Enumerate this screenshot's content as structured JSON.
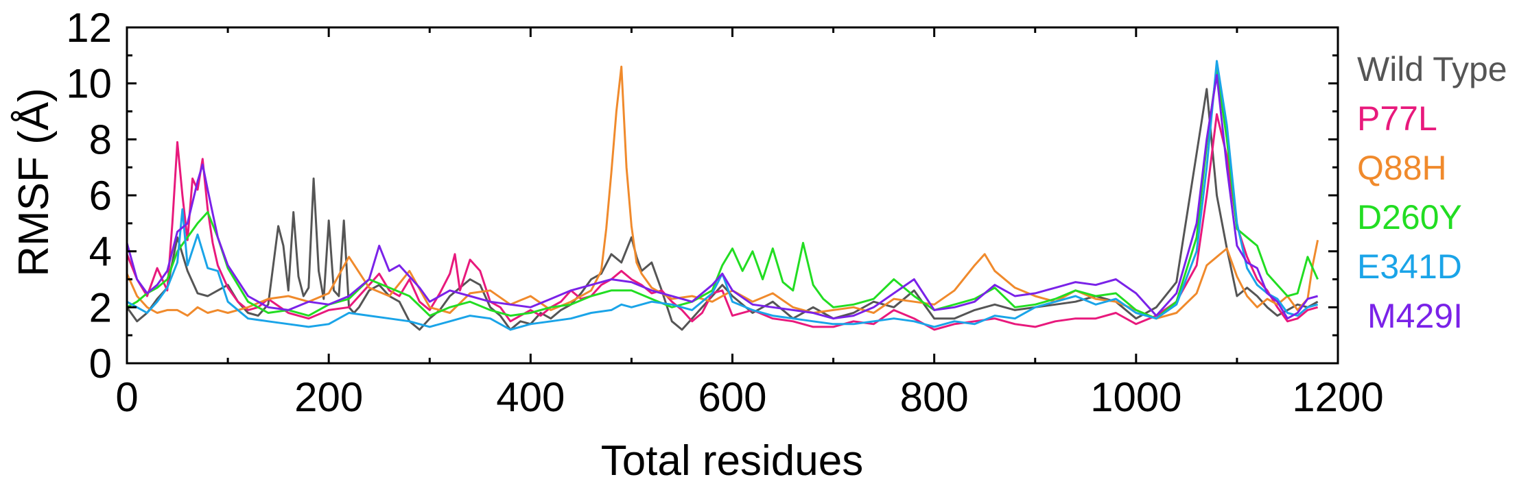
{
  "chart_data": {
    "type": "line",
    "title": "",
    "xlabel": "Total residues",
    "ylabel": "RMSF (Å)",
    "xlim": [
      0,
      1200
    ],
    "ylim": [
      0,
      12
    ],
    "x_ticks": [
      0,
      200,
      400,
      600,
      800,
      1000,
      1200
    ],
    "y_ticks": [
      0,
      2,
      4,
      6,
      8,
      10,
      12
    ],
    "grid": false,
    "legend_position": "right",
    "series": [
      {
        "name": "Wild Type",
        "color": "#555555",
        "x": [
          0,
          10,
          20,
          30,
          40,
          50,
          60,
          70,
          80,
          90,
          100,
          110,
          120,
          130,
          140,
          150,
          155,
          160,
          165,
          170,
          175,
          180,
          185,
          190,
          195,
          200,
          205,
          210,
          215,
          220,
          225,
          230,
          240,
          250,
          260,
          270,
          280,
          290,
          300,
          310,
          320,
          330,
          340,
          350,
          360,
          370,
          380,
          390,
          400,
          410,
          420,
          430,
          440,
          450,
          460,
          470,
          480,
          490,
          500,
          505,
          510,
          520,
          530,
          540,
          550,
          560,
          570,
          580,
          590,
          600,
          620,
          640,
          660,
          680,
          700,
          720,
          740,
          760,
          780,
          800,
          820,
          840,
          860,
          880,
          900,
          920,
          940,
          960,
          980,
          1000,
          1020,
          1040,
          1060,
          1070,
          1080,
          1090,
          1100,
          1110,
          1120,
          1130,
          1140,
          1150,
          1160,
          1170,
          1180
        ],
        "y": [
          2.0,
          1.5,
          1.8,
          2.3,
          2.7,
          4.5,
          3.3,
          2.5,
          2.4,
          2.6,
          2.8,
          2.2,
          1.8,
          1.7,
          2.1,
          4.9,
          4.2,
          2.6,
          5.4,
          3.1,
          2.4,
          2.7,
          6.6,
          3.3,
          2.3,
          5.1,
          2.6,
          2.4,
          5.1,
          2.0,
          1.8,
          2.0,
          2.6,
          2.8,
          2.4,
          2.2,
          1.5,
          1.2,
          1.6,
          1.9,
          2.4,
          2.7,
          3.0,
          2.8,
          2.0,
          1.7,
          1.2,
          1.5,
          1.4,
          1.8,
          1.6,
          1.9,
          2.1,
          2.5,
          3.0,
          3.2,
          3.9,
          3.6,
          4.5,
          3.8,
          3.3,
          3.6,
          2.6,
          1.5,
          1.2,
          1.6,
          2.0,
          2.4,
          2.8,
          2.4,
          1.8,
          2.2,
          1.6,
          2.0,
          1.6,
          1.8,
          2.2,
          2.0,
          2.6,
          1.6,
          1.6,
          1.9,
          2.1,
          1.9,
          2.0,
          2.1,
          2.2,
          2.4,
          2.2,
          1.6,
          2.0,
          2.9,
          7.5,
          9.8,
          6.0,
          4.1,
          2.4,
          2.7,
          2.4,
          2.0,
          1.7,
          1.9,
          2.1,
          2.0,
          2.2
        ]
      },
      {
        "name": "P77L",
        "color": "#e8197c",
        "x": [
          0,
          10,
          20,
          30,
          40,
          45,
          50,
          55,
          60,
          65,
          70,
          75,
          80,
          85,
          90,
          100,
          110,
          120,
          130,
          140,
          160,
          180,
          200,
          220,
          240,
          250,
          260,
          270,
          280,
          290,
          300,
          310,
          320,
          325,
          330,
          340,
          350,
          360,
          370,
          380,
          390,
          400,
          410,
          420,
          430,
          440,
          450,
          460,
          470,
          480,
          490,
          500,
          510,
          520,
          530,
          540,
          550,
          560,
          570,
          580,
          590,
          600,
          620,
          640,
          660,
          680,
          700,
          720,
          740,
          760,
          780,
          800,
          820,
          840,
          860,
          880,
          900,
          920,
          940,
          960,
          980,
          1000,
          1020,
          1040,
          1060,
          1070,
          1080,
          1090,
          1100,
          1110,
          1120,
          1130,
          1140,
          1150,
          1160,
          1170,
          1180
        ],
        "y": [
          3.9,
          3.0,
          2.4,
          3.4,
          2.6,
          5.0,
          7.9,
          6.0,
          4.4,
          6.6,
          6.2,
          7.3,
          5.5,
          4.3,
          3.5,
          2.7,
          2.2,
          1.9,
          2.0,
          2.3,
          1.8,
          1.6,
          1.9,
          2.0,
          2.8,
          3.2,
          2.6,
          2.4,
          3.0,
          2.2,
          1.9,
          2.5,
          3.2,
          3.9,
          2.6,
          3.7,
          3.3,
          2.2,
          2.0,
          1.5,
          1.7,
          1.9,
          1.7,
          2.0,
          2.2,
          2.6,
          2.3,
          2.4,
          2.8,
          3.0,
          3.3,
          3.0,
          2.8,
          2.5,
          2.6,
          2.2,
          1.9,
          1.5,
          1.8,
          2.5,
          2.6,
          1.7,
          1.9,
          1.6,
          1.5,
          1.3,
          1.3,
          1.5,
          1.4,
          1.9,
          1.6,
          1.2,
          1.4,
          1.5,
          1.6,
          1.4,
          1.3,
          1.5,
          1.6,
          1.6,
          1.8,
          1.4,
          1.7,
          2.2,
          3.5,
          6.0,
          8.9,
          7.4,
          4.9,
          3.8,
          3.0,
          2.6,
          2.0,
          1.5,
          1.6,
          1.9,
          2.0
        ]
      },
      {
        "name": "Q88H",
        "color": "#f08a2c",
        "x": [
          0,
          10,
          20,
          30,
          40,
          50,
          60,
          70,
          80,
          90,
          100,
          120,
          140,
          160,
          180,
          200,
          220,
          240,
          260,
          280,
          300,
          320,
          340,
          360,
          380,
          400,
          420,
          440,
          460,
          470,
          475,
          480,
          485,
          490,
          495,
          500,
          505,
          510,
          520,
          540,
          560,
          580,
          600,
          620,
          640,
          660,
          680,
          700,
          720,
          740,
          760,
          780,
          800,
          820,
          840,
          850,
          860,
          880,
          900,
          920,
          940,
          960,
          980,
          1000,
          1020,
          1040,
          1060,
          1070,
          1080,
          1090,
          1100,
          1110,
          1120,
          1130,
          1140,
          1150,
          1160,
          1170,
          1175,
          1180
        ],
        "y": [
          3.2,
          2.4,
          2.0,
          1.8,
          1.9,
          1.9,
          1.7,
          2.0,
          1.8,
          1.9,
          1.8,
          2.0,
          2.3,
          2.4,
          2.2,
          2.5,
          3.8,
          2.7,
          2.4,
          3.3,
          2.0,
          1.8,
          2.5,
          2.6,
          2.1,
          2.4,
          1.9,
          2.2,
          2.6,
          3.3,
          4.8,
          6.8,
          9.0,
          10.6,
          7.0,
          4.9,
          3.6,
          3.2,
          2.7,
          2.3,
          2.4,
          2.2,
          2.6,
          2.2,
          2.5,
          2.0,
          1.8,
          1.9,
          2.0,
          1.8,
          2.3,
          2.2,
          2.1,
          2.6,
          3.5,
          3.9,
          3.3,
          2.7,
          2.4,
          2.2,
          2.6,
          2.3,
          2.2,
          1.9,
          1.6,
          1.8,
          2.5,
          3.5,
          3.8,
          4.1,
          3.1,
          2.4,
          2.0,
          2.3,
          2.1,
          2.4,
          1.9,
          2.3,
          3.5,
          4.4
        ]
      },
      {
        "name": "D260Y",
        "color": "#22dd22",
        "x": [
          0,
          10,
          20,
          30,
          40,
          50,
          60,
          70,
          80,
          90,
          100,
          120,
          140,
          160,
          180,
          200,
          220,
          240,
          260,
          280,
          300,
          320,
          340,
          360,
          380,
          400,
          420,
          440,
          460,
          480,
          500,
          520,
          540,
          560,
          580,
          590,
          600,
          610,
          620,
          630,
          640,
          650,
          660,
          670,
          680,
          690,
          700,
          720,
          740,
          760,
          780,
          800,
          820,
          840,
          860,
          880,
          900,
          920,
          940,
          960,
          980,
          1000,
          1020,
          1040,
          1060,
          1070,
          1080,
          1090,
          1100,
          1110,
          1120,
          1130,
          1140,
          1150,
          1160,
          1170,
          1180
        ],
        "y": [
          2.0,
          2.2,
          2.5,
          2.7,
          3.0,
          4.0,
          4.5,
          5.0,
          5.4,
          4.5,
          3.4,
          2.2,
          1.8,
          1.9,
          1.7,
          2.1,
          2.3,
          3.0,
          2.7,
          2.4,
          1.7,
          2.0,
          2.2,
          1.9,
          1.7,
          1.8,
          2.0,
          2.1,
          2.4,
          2.6,
          2.6,
          2.3,
          2.0,
          2.2,
          2.6,
          3.5,
          4.1,
          3.3,
          4.0,
          3.0,
          4.1,
          2.9,
          2.6,
          4.3,
          2.8,
          2.3,
          2.0,
          2.1,
          2.3,
          3.0,
          2.4,
          1.9,
          2.1,
          2.3,
          2.7,
          2.0,
          2.1,
          2.3,
          2.6,
          2.4,
          2.5,
          1.9,
          1.6,
          2.2,
          4.5,
          7.8,
          10.5,
          8.0,
          4.8,
          4.5,
          4.2,
          3.2,
          2.8,
          2.4,
          2.5,
          3.8,
          3.0
        ]
      },
      {
        "name": "E341D",
        "color": "#1aa4e8",
        "x": [
          0,
          10,
          20,
          30,
          40,
          50,
          55,
          60,
          70,
          80,
          90,
          100,
          120,
          140,
          160,
          180,
          200,
          220,
          240,
          260,
          280,
          300,
          320,
          340,
          360,
          380,
          400,
          420,
          440,
          460,
          480,
          490,
          500,
          520,
          540,
          560,
          580,
          590,
          600,
          620,
          640,
          660,
          680,
          700,
          720,
          740,
          760,
          780,
          800,
          820,
          840,
          860,
          880,
          900,
          920,
          940,
          960,
          980,
          1000,
          1020,
          1040,
          1060,
          1070,
          1080,
          1090,
          1100,
          1110,
          1120,
          1130,
          1140,
          1150,
          1160,
          1170,
          1180
        ],
        "y": [
          2.2,
          2.0,
          1.8,
          2.2,
          2.7,
          3.6,
          5.5,
          3.5,
          4.6,
          3.4,
          3.3,
          2.2,
          1.6,
          1.5,
          1.4,
          1.3,
          1.4,
          1.8,
          1.7,
          1.6,
          1.5,
          1.3,
          1.5,
          1.7,
          1.6,
          1.2,
          1.4,
          1.5,
          1.6,
          1.8,
          1.9,
          2.1,
          2.0,
          2.2,
          2.1,
          1.9,
          2.5,
          3.2,
          2.2,
          1.9,
          1.7,
          1.6,
          1.5,
          1.4,
          1.4,
          1.5,
          1.6,
          1.5,
          1.3,
          1.5,
          1.4,
          1.7,
          1.6,
          2.0,
          2.2,
          2.4,
          2.1,
          2.3,
          1.8,
          1.6,
          2.1,
          4.0,
          7.0,
          10.8,
          8.5,
          5.0,
          3.4,
          2.8,
          2.5,
          2.3,
          1.8,
          1.7,
          2.0,
          2.1
        ]
      },
      {
        "name": "M429I",
        "color": "#7a22e8",
        "x": [
          0,
          10,
          20,
          30,
          40,
          50,
          60,
          70,
          75,
          80,
          90,
          100,
          120,
          140,
          160,
          180,
          200,
          220,
          240,
          250,
          260,
          270,
          280,
          290,
          300,
          320,
          340,
          360,
          380,
          400,
          420,
          440,
          460,
          480,
          500,
          520,
          540,
          560,
          580,
          590,
          600,
          620,
          640,
          660,
          680,
          700,
          720,
          740,
          760,
          780,
          800,
          820,
          840,
          860,
          880,
          900,
          920,
          940,
          960,
          980,
          1000,
          1020,
          1040,
          1060,
          1070,
          1080,
          1090,
          1100,
          1110,
          1120,
          1130,
          1140,
          1150,
          1160,
          1170,
          1180
        ],
        "y": [
          4.3,
          3.0,
          2.5,
          2.8,
          3.3,
          4.7,
          5.0,
          6.5,
          7.1,
          6.2,
          4.5,
          3.5,
          2.4,
          2.0,
          1.9,
          2.2,
          2.1,
          2.4,
          3.0,
          4.2,
          3.3,
          3.5,
          3.1,
          2.7,
          2.2,
          2.6,
          2.4,
          2.2,
          2.1,
          2.0,
          2.3,
          2.6,
          2.8,
          3.0,
          2.9,
          2.6,
          2.4,
          2.2,
          2.8,
          3.2,
          2.6,
          2.1,
          2.0,
          1.9,
          1.8,
          1.6,
          1.7,
          2.0,
          2.5,
          3.0,
          1.9,
          2.0,
          2.2,
          2.8,
          2.4,
          2.5,
          2.7,
          2.9,
          2.8,
          3.0,
          2.5,
          1.7,
          2.5,
          5.0,
          8.0,
          10.3,
          7.0,
          4.2,
          3.6,
          3.4,
          2.5,
          2.2,
          1.6,
          1.8,
          2.3,
          2.4
        ]
      }
    ]
  }
}
